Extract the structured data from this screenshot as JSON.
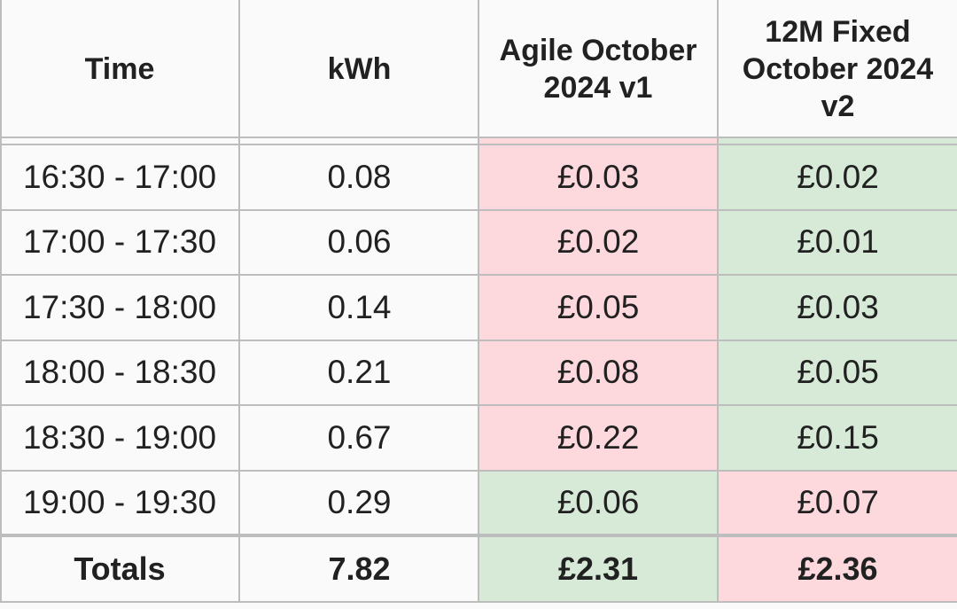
{
  "colors": {
    "higher": "#fdd9dd",
    "lower": "#d6ead7",
    "grid": "#bdbdbd",
    "background": "#fafafa"
  },
  "headers": [
    "Time",
    "kWh",
    "Agile October\n2024 v1",
    "12M Fixed\nOctober 2024\nv2"
  ],
  "rows": [
    {
      "time": "16:30 - 17:00",
      "kwh": "0.08",
      "agile": "£0.03",
      "fixed": "£0.02",
      "agile_status": "higher",
      "fixed_status": "lower"
    },
    {
      "time": "17:00 - 17:30",
      "kwh": "0.06",
      "agile": "£0.02",
      "fixed": "£0.01",
      "agile_status": "higher",
      "fixed_status": "lower"
    },
    {
      "time": "17:30 - 18:00",
      "kwh": "0.14",
      "agile": "£0.05",
      "fixed": "£0.03",
      "agile_status": "higher",
      "fixed_status": "lower"
    },
    {
      "time": "18:00 - 18:30",
      "kwh": "0.21",
      "agile": "£0.08",
      "fixed": "£0.05",
      "agile_status": "higher",
      "fixed_status": "lower"
    },
    {
      "time": "18:30 - 19:00",
      "kwh": "0.67",
      "agile": "£0.22",
      "fixed": "£0.15",
      "agile_status": "higher",
      "fixed_status": "lower"
    },
    {
      "time": "19:00 - 19:30",
      "kwh": "0.29",
      "agile": "£0.06",
      "fixed": "£0.07",
      "agile_status": "lower",
      "fixed_status": "higher"
    }
  ],
  "totals": {
    "label": "Totals",
    "kwh": "7.82",
    "agile": "£2.31",
    "fixed": "£2.36",
    "agile_status": "lower",
    "fixed_status": "higher"
  }
}
